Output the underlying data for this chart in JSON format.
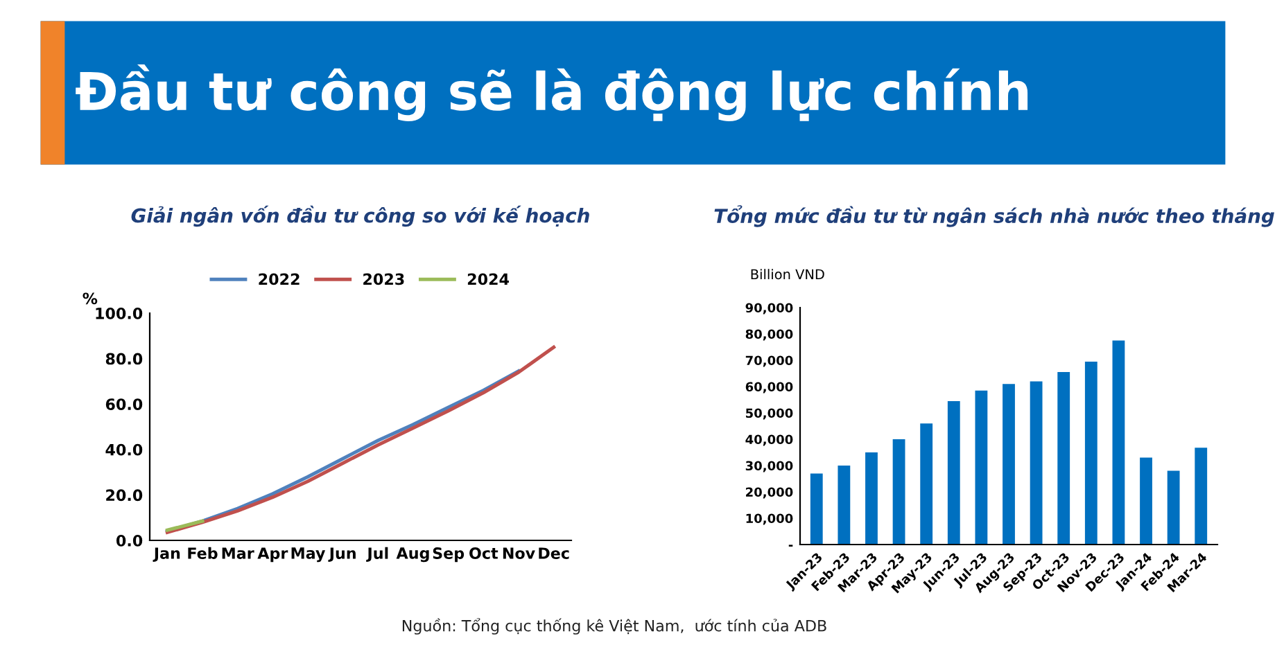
{
  "chart_data": [
    {
      "type": "other",
      "title": "Đầu tư công sẽ là động lực chính",
      "annotations": [
        "Nguồn: Tổng cục thống kê Việt Nam,  ước tính của ADB"
      ]
    },
    {
      "type": "line",
      "title": "Giải ngân vốn đầu tư công so với kế hoạch",
      "ylabel": "%",
      "categories": [
        "Jan",
        "Feb",
        "Mar",
        "Apr",
        "May",
        "Jun",
        "Jul",
        "Aug",
        "Sep",
        "Oct",
        "Nov",
        "Dec"
      ],
      "ylim": [
        0,
        100
      ],
      "yticks": [
        {
          "value": 0,
          "label": "0.0"
        },
        {
          "value": 20,
          "label": "20.0"
        },
        {
          "value": 40,
          "label": "40.0"
        },
        {
          "value": 60,
          "label": "60.0"
        },
        {
          "value": 80,
          "label": "80.0"
        },
        {
          "value": 100,
          "label": "100.0"
        }
      ],
      "grid": false,
      "legend": "top",
      "marker": "none",
      "line_style": "solid",
      "series": [
        {
          "name": "2022",
          "color": "#4f81bd",
          "values": [
            4,
            8.5,
            14,
            20.5,
            28,
            36,
            44,
            51,
            58.5,
            66,
            74.5,
            null
          ]
        },
        {
          "name": "2023",
          "color": "#c0504d",
          "values": [
            3.5,
            8,
            13,
            19,
            26,
            34,
            42,
            49.5,
            57,
            65,
            74,
            85
          ]
        },
        {
          "name": "2024",
          "color": "#9bbb59",
          "values": [
            4.5,
            8.5,
            null,
            null,
            null,
            null,
            null,
            null,
            null,
            null,
            null,
            null
          ]
        }
      ]
    },
    {
      "type": "bar",
      "title": "Tổng mức đầu tư từ ngân sách nhà nước theo tháng",
      "ylabel": "Billion VND",
      "categories": [
        "Jan-23",
        "Feb-23",
        "Mar-23",
        "Apr-23",
        "May-23",
        "Jun-23",
        "Jul-23",
        "Aug-23",
        "Sep-23",
        "Oct-23",
        "Nov-23",
        "Dec-23",
        "Jan-24",
        "Feb-24",
        "Mar-24"
      ],
      "ylim": [
        0,
        90000
      ],
      "yticks": [
        {
          "value": 0,
          "label": "-"
        },
        {
          "value": 10000,
          "label": "10,000"
        },
        {
          "value": 20000,
          "label": "20,000"
        },
        {
          "value": 30000,
          "label": "30,000"
        },
        {
          "value": 40000,
          "label": "40,000"
        },
        {
          "value": 50000,
          "label": "50,000"
        },
        {
          "value": 60000,
          "label": "60,000"
        },
        {
          "value": 70000,
          "label": "70,000"
        },
        {
          "value": 80000,
          "label": "80,000"
        },
        {
          "value": 90000,
          "label": "90,000"
        }
      ],
      "grid": false,
      "color": "#0070c0",
      "values": [
        27000,
        30000,
        35000,
        40000,
        46000,
        54500,
        58500,
        61000,
        62000,
        65500,
        69500,
        77500,
        33000,
        28000,
        36800
      ]
    }
  ]
}
